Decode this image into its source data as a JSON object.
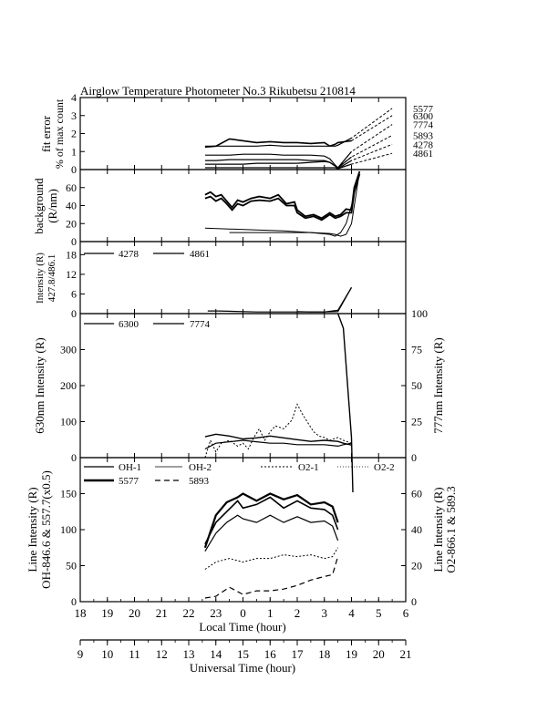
{
  "title": "Airglow Temperature Photometer No.3  Rikubetsu    210814",
  "x_axes": {
    "local": {
      "label": "Local Time (hour)",
      "ticks": [
        "18",
        "19",
        "20",
        "21",
        "22",
        "23",
        "0",
        "1",
        "2",
        "3",
        "4",
        "5",
        "6"
      ]
    },
    "ut": {
      "label": "Universal Time (hour)",
      "ticks": [
        "9",
        "10",
        "11",
        "12",
        "13",
        "14",
        "15",
        "16",
        "17",
        "18",
        "19",
        "20",
        "21"
      ]
    }
  },
  "chart_data": [
    {
      "type": "line",
      "panel": "fit-error",
      "ylabel": [
        "fit error",
        "% of max count"
      ],
      "ylim": [
        0,
        4
      ],
      "yticks": [
        "0",
        "1",
        "2",
        "3",
        "4"
      ],
      "series": [
        {
          "name": "5577",
          "x": [
            22.6,
            23.0,
            23.5,
            24.0,
            24.5,
            25.0,
            25.5,
            26.0,
            26.5,
            27.0,
            27.2,
            27.4,
            27.5,
            28.0,
            29.5
          ],
          "y": [
            1.3,
            1.3,
            1.3,
            1.3,
            1.3,
            1.35,
            1.3,
            1.3,
            1.3,
            1.3,
            1.3,
            1.3,
            1.35,
            1.75,
            3.4
          ]
        },
        {
          "name": "6300",
          "x": [
            22.6,
            23.0,
            23.5,
            24.0,
            24.5,
            25.0,
            25.5,
            26.0,
            26.5,
            27.0,
            27.2,
            27.4,
            27.5,
            28.0,
            29.5
          ],
          "y": [
            1.25,
            1.3,
            1.7,
            1.6,
            1.5,
            1.55,
            1.5,
            1.5,
            1.45,
            1.5,
            1.3,
            1.4,
            1.5,
            1.6,
            3.0
          ]
        },
        {
          "name": "7774",
          "x": [
            22.6,
            23.0,
            23.5,
            24.0,
            24.5,
            25.0,
            25.5,
            26.0,
            26.5,
            27.0,
            27.2,
            27.4,
            27.5,
            28.0,
            29.5
          ],
          "y": [
            0.8,
            0.8,
            0.8,
            0.85,
            0.85,
            0.85,
            0.8,
            0.8,
            0.8,
            0.75,
            0.6,
            0.25,
            0.1,
            1.0,
            2.5
          ]
        },
        {
          "name": "5893",
          "x": [
            22.6,
            23.0,
            23.5,
            24.0,
            24.5,
            25.0,
            25.5,
            26.0,
            26.5,
            27.0,
            27.2,
            27.4,
            27.5,
            28.0,
            29.5
          ],
          "y": [
            0.5,
            0.5,
            0.55,
            0.55,
            0.55,
            0.55,
            0.55,
            0.55,
            0.5,
            0.5,
            0.4,
            0.2,
            0.1,
            0.7,
            1.9
          ]
        },
        {
          "name": "4278",
          "x": [
            22.6,
            23.0,
            23.5,
            24.0,
            24.5,
            25.0,
            25.5,
            26.0,
            26.5,
            27.0,
            27.2,
            27.4,
            27.5,
            28.0,
            29.5
          ],
          "y": [
            0.3,
            0.3,
            0.3,
            0.3,
            0.35,
            0.35,
            0.35,
            0.35,
            0.4,
            0.45,
            0.4,
            0.2,
            0.05,
            0.5,
            1.4
          ]
        },
        {
          "name": "4861",
          "x": [
            22.6,
            23.0,
            23.5,
            24.0,
            24.5,
            25.0,
            25.5,
            26.0,
            26.5,
            27.0,
            27.2,
            27.4,
            27.5,
            28.0,
            29.5
          ],
          "y": [
            0.1,
            0.1,
            0.1,
            0.1,
            0.1,
            0.1,
            0.1,
            0.1,
            0.1,
            0.1,
            0.1,
            0.1,
            0.05,
            0.3,
            0.9
          ]
        }
      ]
    },
    {
      "type": "line",
      "panel": "background",
      "ylabel": [
        "background",
        "(R/nm)"
      ],
      "ylim": [
        0,
        80
      ],
      "yticks": [
        "0",
        "20",
        "40",
        "60"
      ],
      "series": [
        {
          "x": [
            22.6,
            22.8,
            23.0,
            23.2,
            23.4,
            23.6,
            23.8,
            24.0,
            24.3,
            24.6,
            25.0,
            25.3,
            25.6,
            25.9,
            26.0,
            26.3,
            26.6,
            26.9,
            27.2,
            27.4,
            27.6,
            27.8,
            28.0,
            28.1,
            28.3
          ],
          "y": [
            52,
            55,
            50,
            52,
            45,
            38,
            46,
            44,
            48,
            50,
            48,
            52,
            42,
            44,
            35,
            28,
            30,
            26,
            32,
            28,
            30,
            36,
            35,
            60,
            78
          ]
        },
        {
          "x": [
            22.6,
            22.8,
            23.0,
            23.2,
            23.4,
            23.6,
            23.8,
            24.0,
            24.3,
            24.6,
            25.0,
            25.3,
            25.6,
            25.9,
            26.0,
            26.3,
            26.6,
            26.9,
            27.2,
            27.4,
            27.6,
            27.8,
            28.0,
            28.1,
            28.3
          ],
          "y": [
            48,
            50,
            45,
            48,
            42,
            35,
            42,
            40,
            45,
            46,
            45,
            48,
            40,
            40,
            32,
            26,
            28,
            24,
            30,
            26,
            28,
            32,
            32,
            55,
            75
          ]
        },
        {
          "x": [
            22.6,
            23.5,
            24.5,
            25.5,
            26.5,
            27.2,
            27.4,
            27.6,
            27.8,
            28.0,
            28.3
          ],
          "y": [
            15,
            14,
            13,
            12,
            10,
            8,
            6,
            10,
            20,
            40,
            78
          ]
        },
        {
          "x": [
            23.5,
            24.5,
            25.5,
            26.5,
            27.2,
            27.4,
            27.6,
            27.8,
            28.0,
            28.3
          ],
          "y": [
            10,
            10,
            10,
            10,
            9,
            8,
            6,
            8,
            20,
            78
          ]
        }
      ]
    },
    {
      "type": "line",
      "panel": "ratio",
      "ylabel": [
        "Intensity (R)",
        "427.8/486.1"
      ],
      "ylim": [
        0,
        22
      ],
      "yticks": [
        "0",
        "6",
        "12",
        "18"
      ],
      "series": [
        {
          "name": "4278",
          "x": [
            22.7,
            23.1,
            24.5,
            25.0,
            26.0,
            26.5,
            27.0,
            27.5,
            28.0
          ],
          "y": [
            0.8,
            0.8,
            0.5,
            0.5,
            0.5,
            0.5,
            0.5,
            1.0,
            8.0
          ]
        },
        {
          "name": "4861",
          "x": [
            26.0,
            26.5,
            27.0,
            27.5,
            28.0
          ],
          "y": [
            0.6,
            0.5,
            0.5,
            0.6,
            8.0
          ]
        }
      ]
    },
    {
      "type": "line",
      "panel": "630-777",
      "ylabel_left": "630nm Intensity (R)",
      "ylabel_right": "777nm Intensity (R)",
      "ylim_left": [
        0,
        400
      ],
      "ylim_right": [
        0,
        100
      ],
      "yticks_left": [
        "0",
        "100",
        "200",
        "300"
      ],
      "yticks_right": [
        "0",
        "25",
        "50",
        "75",
        "100"
      ],
      "series": [
        {
          "name": "6300",
          "axis": "left",
          "x": [
            22.6,
            23.0,
            23.5,
            24.0,
            24.5,
            25.0,
            25.5,
            26.0,
            26.5,
            27.0,
            27.5,
            27.7,
            28.0
          ],
          "y": [
            58,
            65,
            60,
            52,
            55,
            60,
            55,
            50,
            45,
            48,
            45,
            40,
            35
          ]
        },
        {
          "name": "7774",
          "axis": "right",
          "x": [
            22.6,
            23.0,
            23.5,
            24.0,
            24.5,
            25.0,
            25.5,
            26.0,
            26.5,
            27.0,
            27.5,
            27.7,
            28.0
          ],
          "y": [
            6,
            10,
            11,
            12,
            11,
            10,
            10,
            9,
            9,
            9,
            8,
            9,
            10
          ]
        },
        {
          "x": [
            22.6,
            22.8,
            23.0,
            23.2,
            23.5,
            23.8,
            24.0,
            24.2,
            24.4,
            24.6,
            24.8,
            25.0,
            25.2,
            25.5,
            25.8,
            26.0,
            26.2,
            26.4,
            26.6,
            26.8,
            27.0,
            27.2,
            27.5,
            27.7,
            28.0
          ],
          "y": [
            0,
            12,
            4,
            10,
            12,
            8,
            10,
            6,
            14,
            20,
            12,
            18,
            22,
            20,
            26,
            37,
            30,
            24,
            18,
            15,
            14,
            12,
            14,
            12,
            10
          ],
          "axis": "right",
          "style": "dotted"
        }
      ]
    },
    {
      "type": "line",
      "panel": "line-intensity",
      "ylabel_left": [
        "Line Intensity (R)",
        "OH-846.6 & 557.7(x0.5)"
      ],
      "ylabel_right": [
        "Line Intensity (R)",
        "O2-866.1 & 589.3"
      ],
      "ylim_left": [
        0,
        200
      ],
      "ylim_right": [
        0,
        80
      ],
      "yticks_left": [
        "0",
        "50",
        "100",
        "150"
      ],
      "yticks_right": [
        "0",
        "20",
        "40",
        "60"
      ],
      "legend": [
        "OH-1",
        "OH-2",
        "O2-1",
        "O2-2",
        "5577",
        "5893"
      ],
      "series": [
        {
          "name": "5577",
          "axis": "left",
          "x": [
            22.6,
            23.0,
            23.4,
            23.8,
            24.0,
            24.5,
            25.0,
            25.5,
            26.0,
            26.5,
            27.0,
            27.3,
            27.5
          ],
          "y": [
            75,
            120,
            138,
            145,
            150,
            140,
            150,
            142,
            148,
            135,
            138,
            132,
            110
          ]
        },
        {
          "name": "OH-1",
          "axis": "left",
          "x": [
            22.6,
            23.0,
            23.4,
            23.8,
            24.0,
            24.5,
            25.0,
            25.5,
            26.0,
            26.5,
            27.0,
            27.3,
            27.5
          ],
          "y": [
            80,
            110,
            125,
            140,
            130,
            135,
            145,
            130,
            140,
            130,
            128,
            120,
            100
          ]
        },
        {
          "name": "OH-2",
          "axis": "left",
          "x": [
            22.6,
            23.0,
            23.4,
            23.8,
            24.0,
            24.5,
            25.0,
            25.5,
            26.0,
            26.5,
            27.0,
            27.3,
            27.5
          ],
          "y": [
            70,
            95,
            110,
            120,
            115,
            110,
            120,
            110,
            118,
            110,
            112,
            105,
            85
          ]
        },
        {
          "name": "O2-1",
          "axis": "right",
          "x": [
            22.6,
            23.0,
            23.5,
            24.0,
            24.5,
            25.0,
            25.5,
            26.0,
            26.5,
            27.0,
            27.3,
            27.5
          ],
          "y": [
            18,
            22,
            24,
            22,
            24,
            24,
            26,
            25,
            26,
            24,
            25,
            30
          ]
        },
        {
          "name": "5893",
          "axis": "right",
          "x": [
            22.6,
            23.0,
            23.5,
            24.0,
            24.5,
            25.0,
            25.5,
            26.0,
            26.5,
            27.0,
            27.3,
            27.5
          ],
          "y": [
            2,
            3,
            8,
            4,
            6,
            6,
            7,
            9,
            12,
            14,
            15,
            25
          ]
        }
      ]
    }
  ]
}
